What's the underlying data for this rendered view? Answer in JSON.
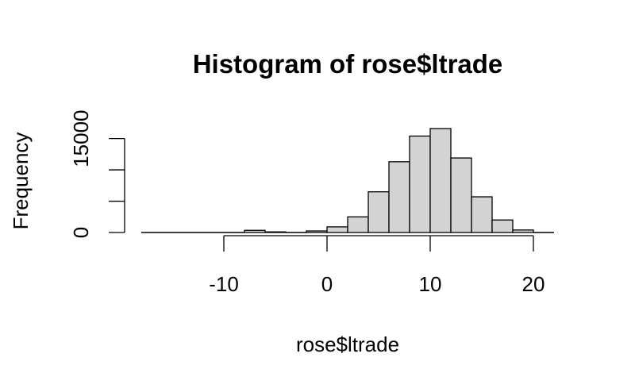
{
  "chart_data": {
    "type": "bar",
    "title": "Histogram of rose$ltrade",
    "xlabel": "rose$ltrade",
    "ylabel": "Frequency",
    "bin_width": 2,
    "bins": [
      {
        "x0": -18,
        "x1": -16,
        "count": 0
      },
      {
        "x0": -16,
        "x1": -14,
        "count": 0
      },
      {
        "x0": -14,
        "x1": -12,
        "count": 0
      },
      {
        "x0": -12,
        "x1": -10,
        "count": 0
      },
      {
        "x0": -10,
        "x1": -8,
        "count": 5
      },
      {
        "x0": -8,
        "x1": -6,
        "count": 350
      },
      {
        "x0": -6,
        "x1": -4,
        "count": 100
      },
      {
        "x0": -4,
        "x1": -2,
        "count": 40
      },
      {
        "x0": -2,
        "x1": 0,
        "count": 250
      },
      {
        "x0": 0,
        "x1": 2,
        "count": 900
      },
      {
        "x0": 2,
        "x1": 4,
        "count": 2500
      },
      {
        "x0": 4,
        "x1": 6,
        "count": 6500
      },
      {
        "x0": 6,
        "x1": 8,
        "count": 11300
      },
      {
        "x0": 8,
        "x1": 10,
        "count": 15400
      },
      {
        "x0": 10,
        "x1": 12,
        "count": 16600
      },
      {
        "x0": 12,
        "x1": 14,
        "count": 11900
      },
      {
        "x0": 14,
        "x1": 16,
        "count": 5700
      },
      {
        "x0": 16,
        "x1": 18,
        "count": 2000
      },
      {
        "x0": 18,
        "x1": 20,
        "count": 400
      },
      {
        "x0": 20,
        "x1": 22,
        "count": 10
      }
    ],
    "x_ticks": [
      -10,
      0,
      10,
      20
    ],
    "x_tick_labels": [
      "-10",
      "0",
      "10",
      "20"
    ],
    "y_ticks": [
      0,
      5000,
      10000,
      15000
    ],
    "y_tick_labels": [
      "0",
      "",
      "",
      "15000"
    ],
    "xlim": [
      -18,
      22
    ],
    "ylim": [
      0,
      16600
    ],
    "bar_color": "#d3d3d3",
    "grid": false,
    "legend": "none"
  }
}
